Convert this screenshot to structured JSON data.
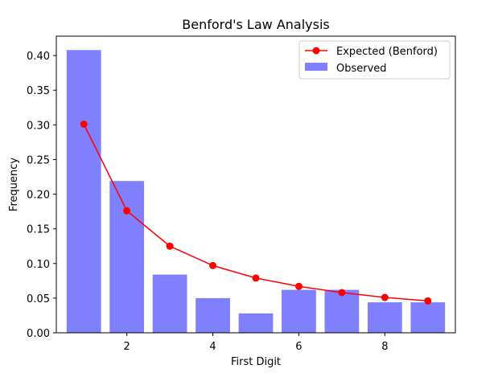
{
  "chart_data": {
    "type": "bar",
    "title": "Benford's Law Analysis",
    "xlabel": "First Digit",
    "ylabel": "Frequency",
    "x": [
      1,
      2,
      3,
      4,
      5,
      6,
      7,
      8,
      9
    ],
    "xlim": [
      0.36,
      9.64
    ],
    "ylim": [
      0,
      0.428
    ],
    "xticks": [
      2,
      4,
      6,
      8
    ],
    "yticks": [
      0.0,
      0.05,
      0.1,
      0.15,
      0.2,
      0.25,
      0.3,
      0.35,
      0.4
    ],
    "ytick_labels": [
      "0.00",
      "0.05",
      "0.10",
      "0.15",
      "0.20",
      "0.25",
      "0.30",
      "0.35",
      "0.40"
    ],
    "bar_width": 0.8,
    "series": [
      {
        "name": "Observed",
        "kind": "bar",
        "color": "#8080ff",
        "values": [
          0.408,
          0.219,
          0.084,
          0.05,
          0.028,
          0.062,
          0.062,
          0.044,
          0.044
        ]
      },
      {
        "name": "Expected (Benford)",
        "kind": "line",
        "marker": "circle",
        "color": "#ff0000",
        "values": [
          0.301,
          0.176,
          0.125,
          0.097,
          0.079,
          0.067,
          0.058,
          0.051,
          0.046
        ]
      }
    ],
    "grid": false,
    "legend_position": "top-right"
  }
}
